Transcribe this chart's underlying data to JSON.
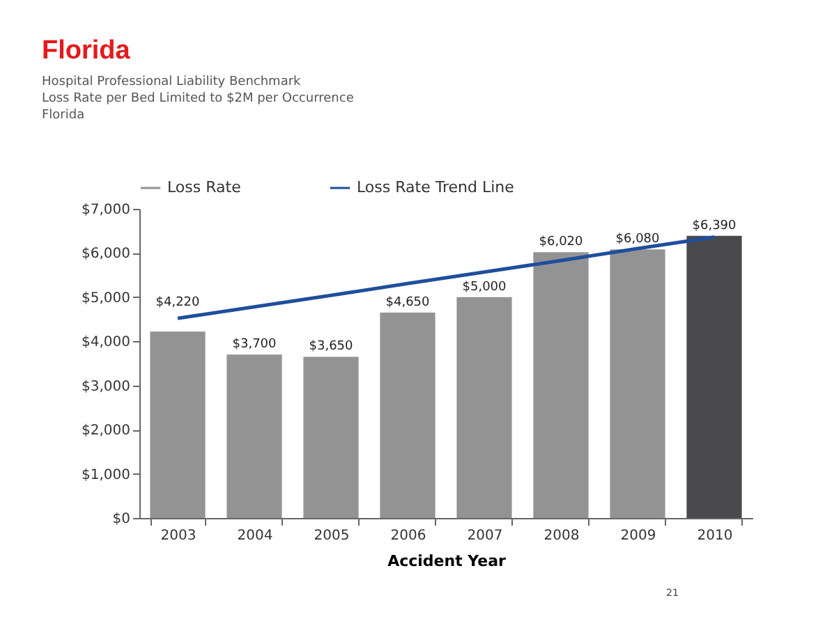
{
  "chart_data": {
    "type": "bar",
    "title": "Florida",
    "subtitle": "Hospital Professional Liability Benchmark\nLoss Rate per Bed Limited to $2M per Occurrence\nFlorida",
    "xlabel": "Accident Year",
    "categories": [
      "2003",
      "2004",
      "2005",
      "2006",
      "2007",
      "2008",
      "2009",
      "2010"
    ],
    "series": [
      {
        "name": "Loss Rate",
        "color": "#939393",
        "colors": [
          "#939393",
          "#939393",
          "#939393",
          "#939393",
          "#939393",
          "#939393",
          "#939393",
          "#4a4a4d"
        ],
        "values": [
          4220,
          3700,
          3650,
          4650,
          5000,
          6020,
          6080,
          6390
        ],
        "value_labels": [
          "$4,220",
          "$3,700",
          "$3,650",
          "$4,650",
          "$5,000",
          "$6,020",
          "$6,080",
          "$6,390"
        ]
      },
      {
        "name": "Loss Rate Trend Line",
        "type": "line",
        "color": "#1f4e9c",
        "values": [
          4520,
          4780,
          5040,
          5310,
          5570,
          5830,
          6100,
          6360
        ]
      }
    ],
    "ylim": [
      0,
      7000
    ],
    "yticks": [
      {
        "value": 0,
        "label": "$0"
      },
      {
        "value": 1000,
        "label": "$1,000"
      },
      {
        "value": 2000,
        "label": "$2,000"
      },
      {
        "value": 3000,
        "label": "$3,000"
      },
      {
        "value": 4000,
        "label": "$4,000"
      },
      {
        "value": 5000,
        "label": "$5,000"
      },
      {
        "value": 6000,
        "label": "$6,000"
      },
      {
        "value": 7000,
        "label": "$7,000"
      }
    ],
    "grid": false,
    "legend": "top",
    "annotations": [
      "21"
    ]
  }
}
